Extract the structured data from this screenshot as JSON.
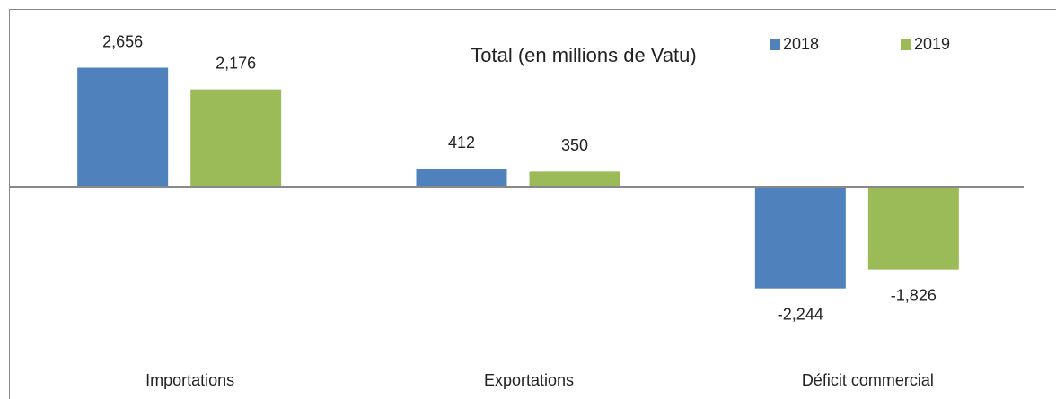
{
  "chart_data": {
    "type": "bar",
    "title": "Total (en millions de Vatu)",
    "categories": [
      "Importations",
      "Exportations",
      "Déficit commercial"
    ],
    "series": [
      {
        "name": "2018",
        "color": "#4f81bd",
        "values": [
          2656,
          412,
          -2244
        ],
        "value_labels": [
          "2,656",
          "412",
          "-2,244"
        ]
      },
      {
        "name": "2019",
        "color": "#9bbb59",
        "values": [
          2176,
          350,
          -1826
        ],
        "value_labels": [
          "2,176",
          "350",
          "-1,826"
        ]
      }
    ],
    "ylim": [
      -4500,
      4000
    ],
    "legend": "top-right"
  }
}
